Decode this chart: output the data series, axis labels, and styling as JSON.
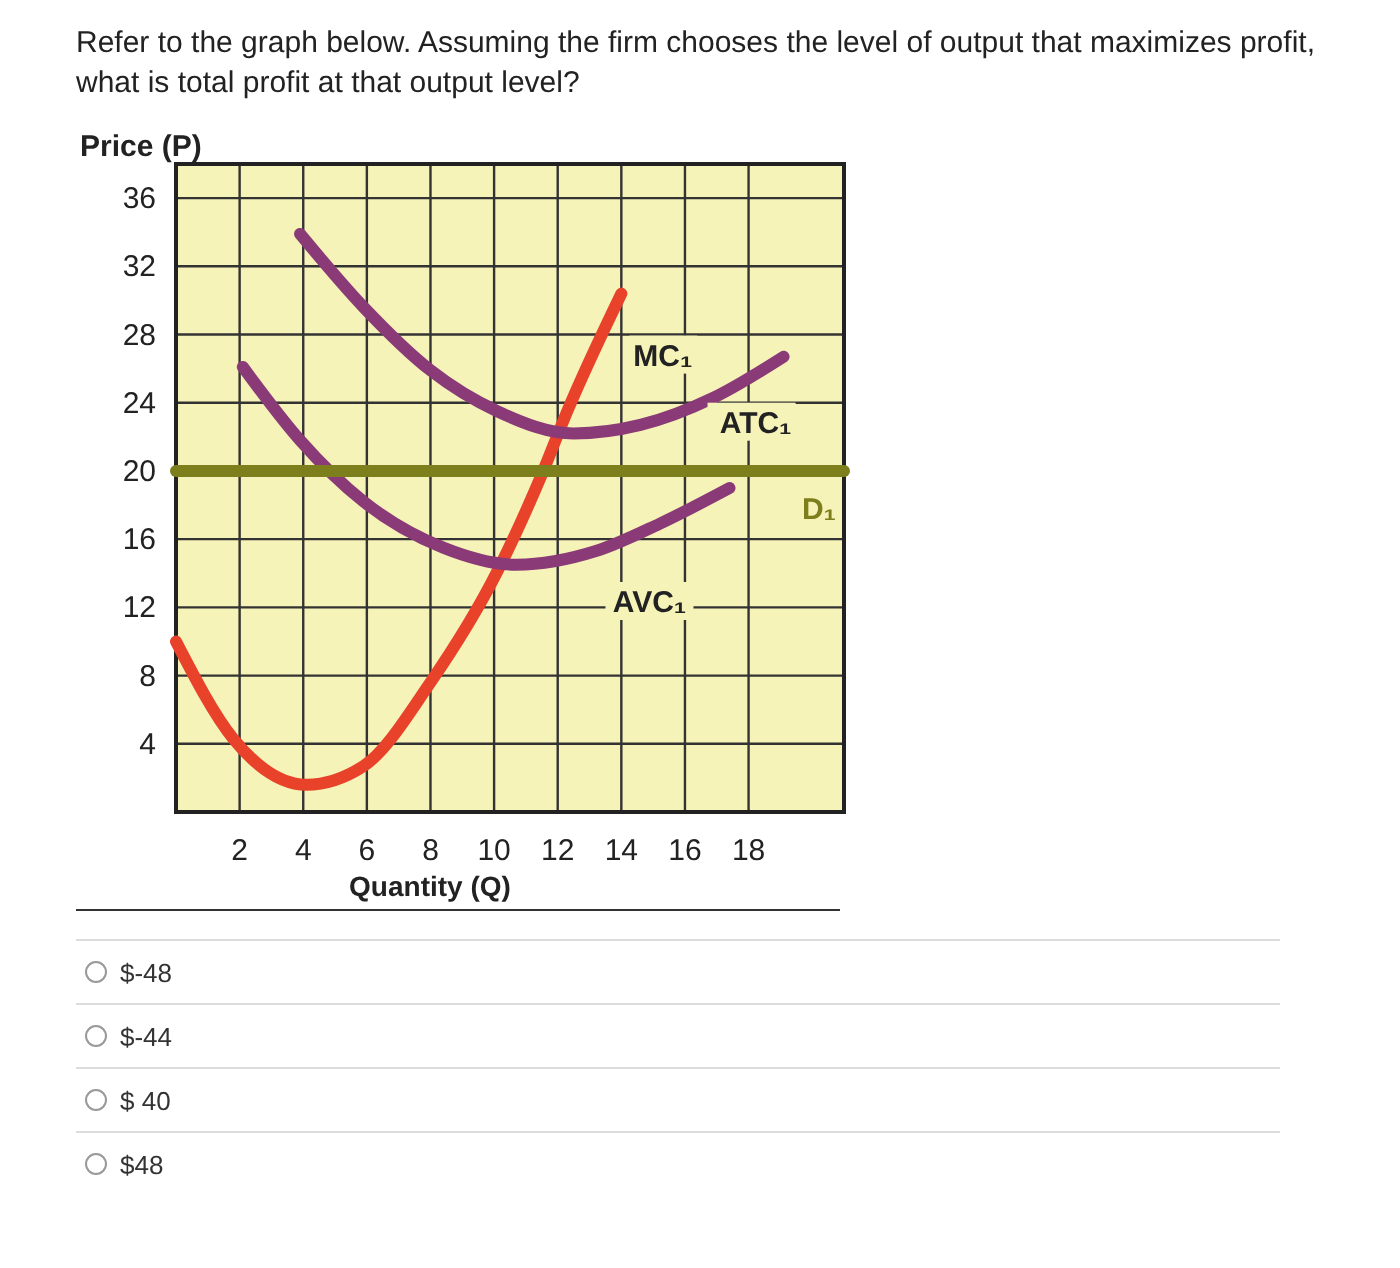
{
  "chart_data": {
    "type": "line",
    "title": "Refer to the graph below. Assuming the firm chooses the level of output that maximizes profit, what is total profit at that output level?",
    "xlabel": "Quantity (Q)",
    "ylabel": "Price (P)",
    "xlim": [
      0,
      21
    ],
    "ylim": [
      0,
      38
    ],
    "xticks": [
      2,
      4,
      6,
      8,
      10,
      12,
      14,
      16,
      18
    ],
    "yticks": [
      4,
      8,
      12,
      16,
      20,
      24,
      28,
      32,
      36
    ],
    "grid": true,
    "marker": "none",
    "line_style": "solid",
    "series": [
      {
        "name": "MC₁",
        "color": "#e8432a",
        "x": [
          0,
          1.8,
          4.1,
          5.9,
          8,
          10.1,
          11.5,
          12.3,
          14
        ],
        "values": [
          10,
          4.3,
          1.6,
          2.7,
          7.6,
          14.1,
          19.8,
          23.5,
          30.4
        ]
      },
      {
        "name": "ATC₁",
        "color": "#8b3a78",
        "x": [
          3.9,
          5.9,
          8,
          10.1,
          12.5,
          14.6,
          16.9,
          19.1
        ],
        "values": [
          33.9,
          29.6,
          25.9,
          23.5,
          22.2,
          22.7,
          24.3,
          26.7
        ]
      },
      {
        "name": "AVC₁",
        "color": "#8b3a78",
        "x": [
          2.1,
          3.9,
          5.9,
          8.4,
          10.7,
          13.2,
          15.2,
          17.4
        ],
        "values": [
          26.1,
          21.8,
          18.2,
          15.5,
          14.5,
          15.3,
          16.9,
          19
        ]
      },
      {
        "name": "D₁",
        "color": "#7d7f1c",
        "x": [
          0,
          21
        ],
        "values": [
          20,
          20
        ]
      }
    ],
    "annotations": [
      "$-48",
      "$-44",
      "$ 40",
      "$48"
    ]
  }
}
